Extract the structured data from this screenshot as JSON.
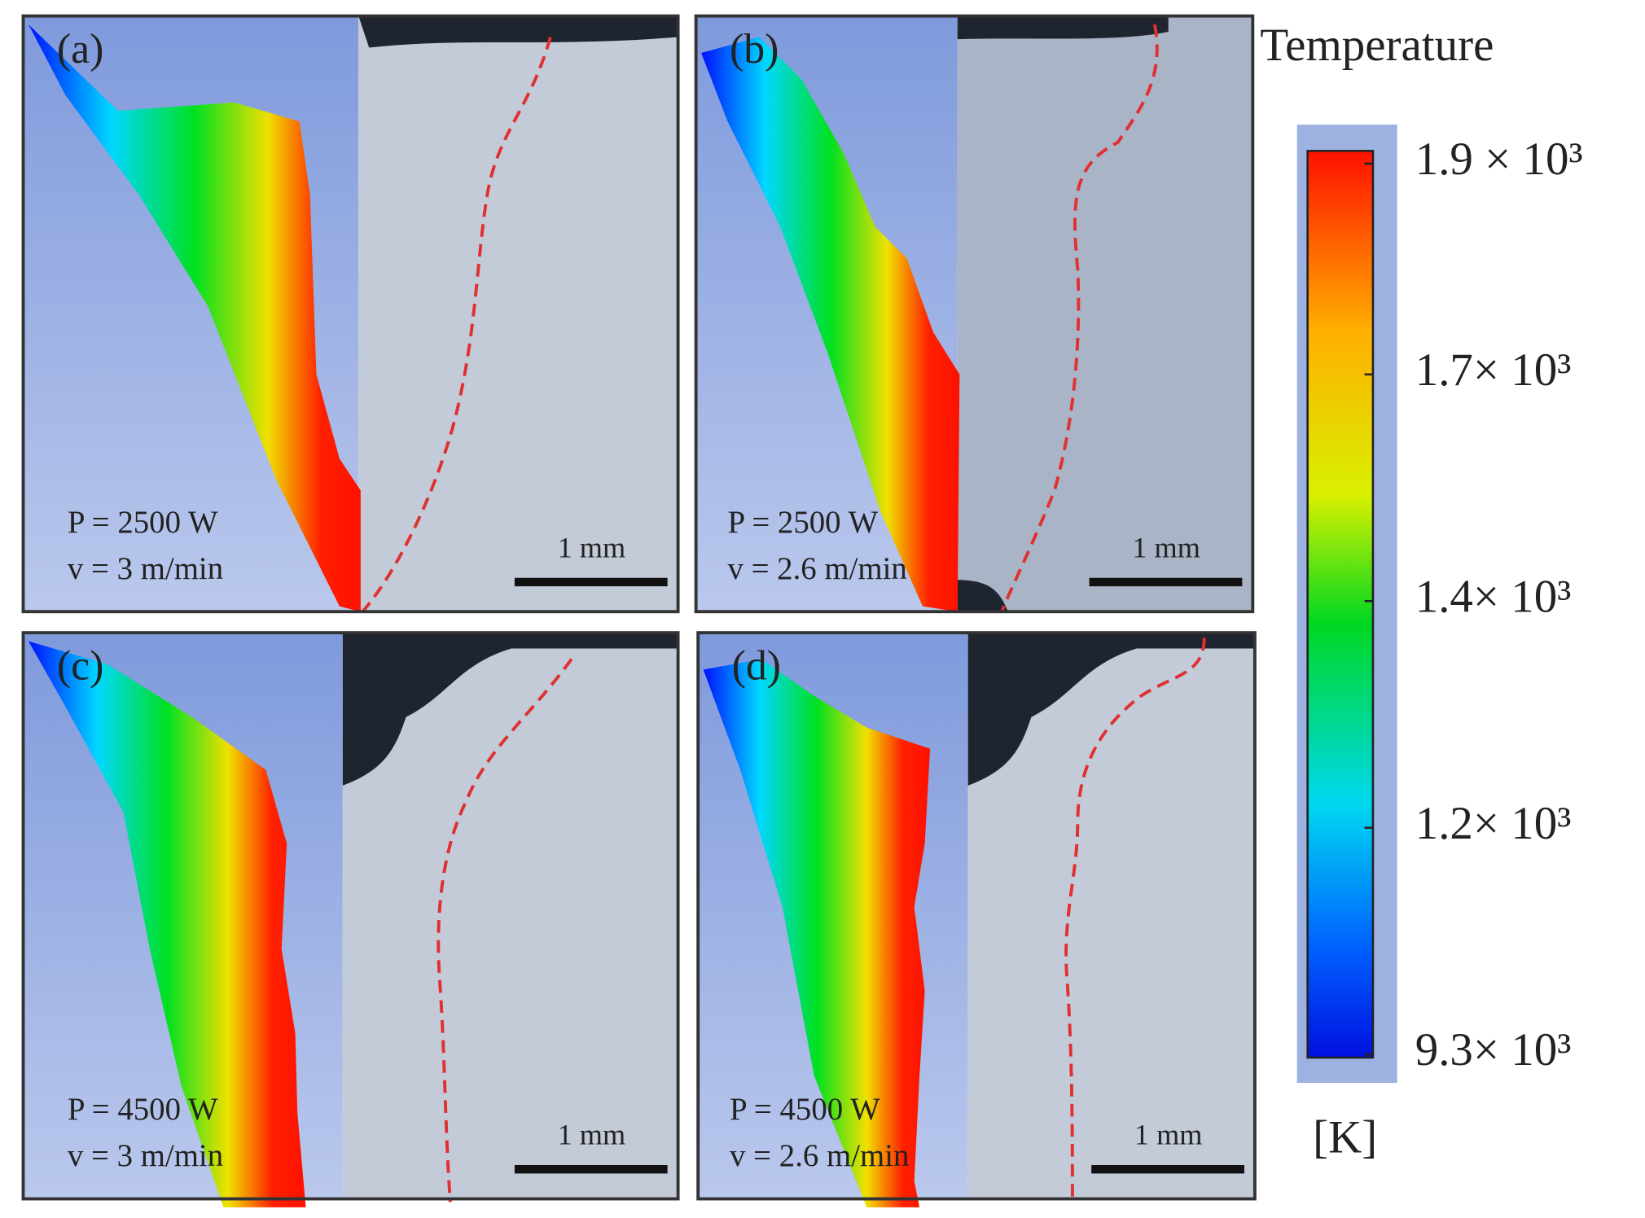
{
  "panels": [
    {
      "label": "(a)",
      "power": "P = 2500 W",
      "speed": "v = 3 m/min",
      "scale_bar": "1 mm"
    },
    {
      "label": "(b)",
      "power": "P = 2500 W",
      "speed": "v = 2.6 m/min",
      "scale_bar": "1 mm"
    },
    {
      "label": "(c)",
      "power": "P = 4500 W",
      "speed": "v = 3 m/min",
      "scale_bar": "1 mm"
    },
    {
      "label": "(d)",
      "power": "P = 4500 W",
      "speed": "v = 2.6 m/min",
      "scale_bar": "1 mm"
    }
  ],
  "colorbar": {
    "title": "Temperature",
    "unit": "[K]",
    "labels": [
      "1.9 × 10³",
      "1.7× 10³",
      "1.4× 10³",
      "1.2× 10³",
      "9.3× 10³"
    ]
  }
}
